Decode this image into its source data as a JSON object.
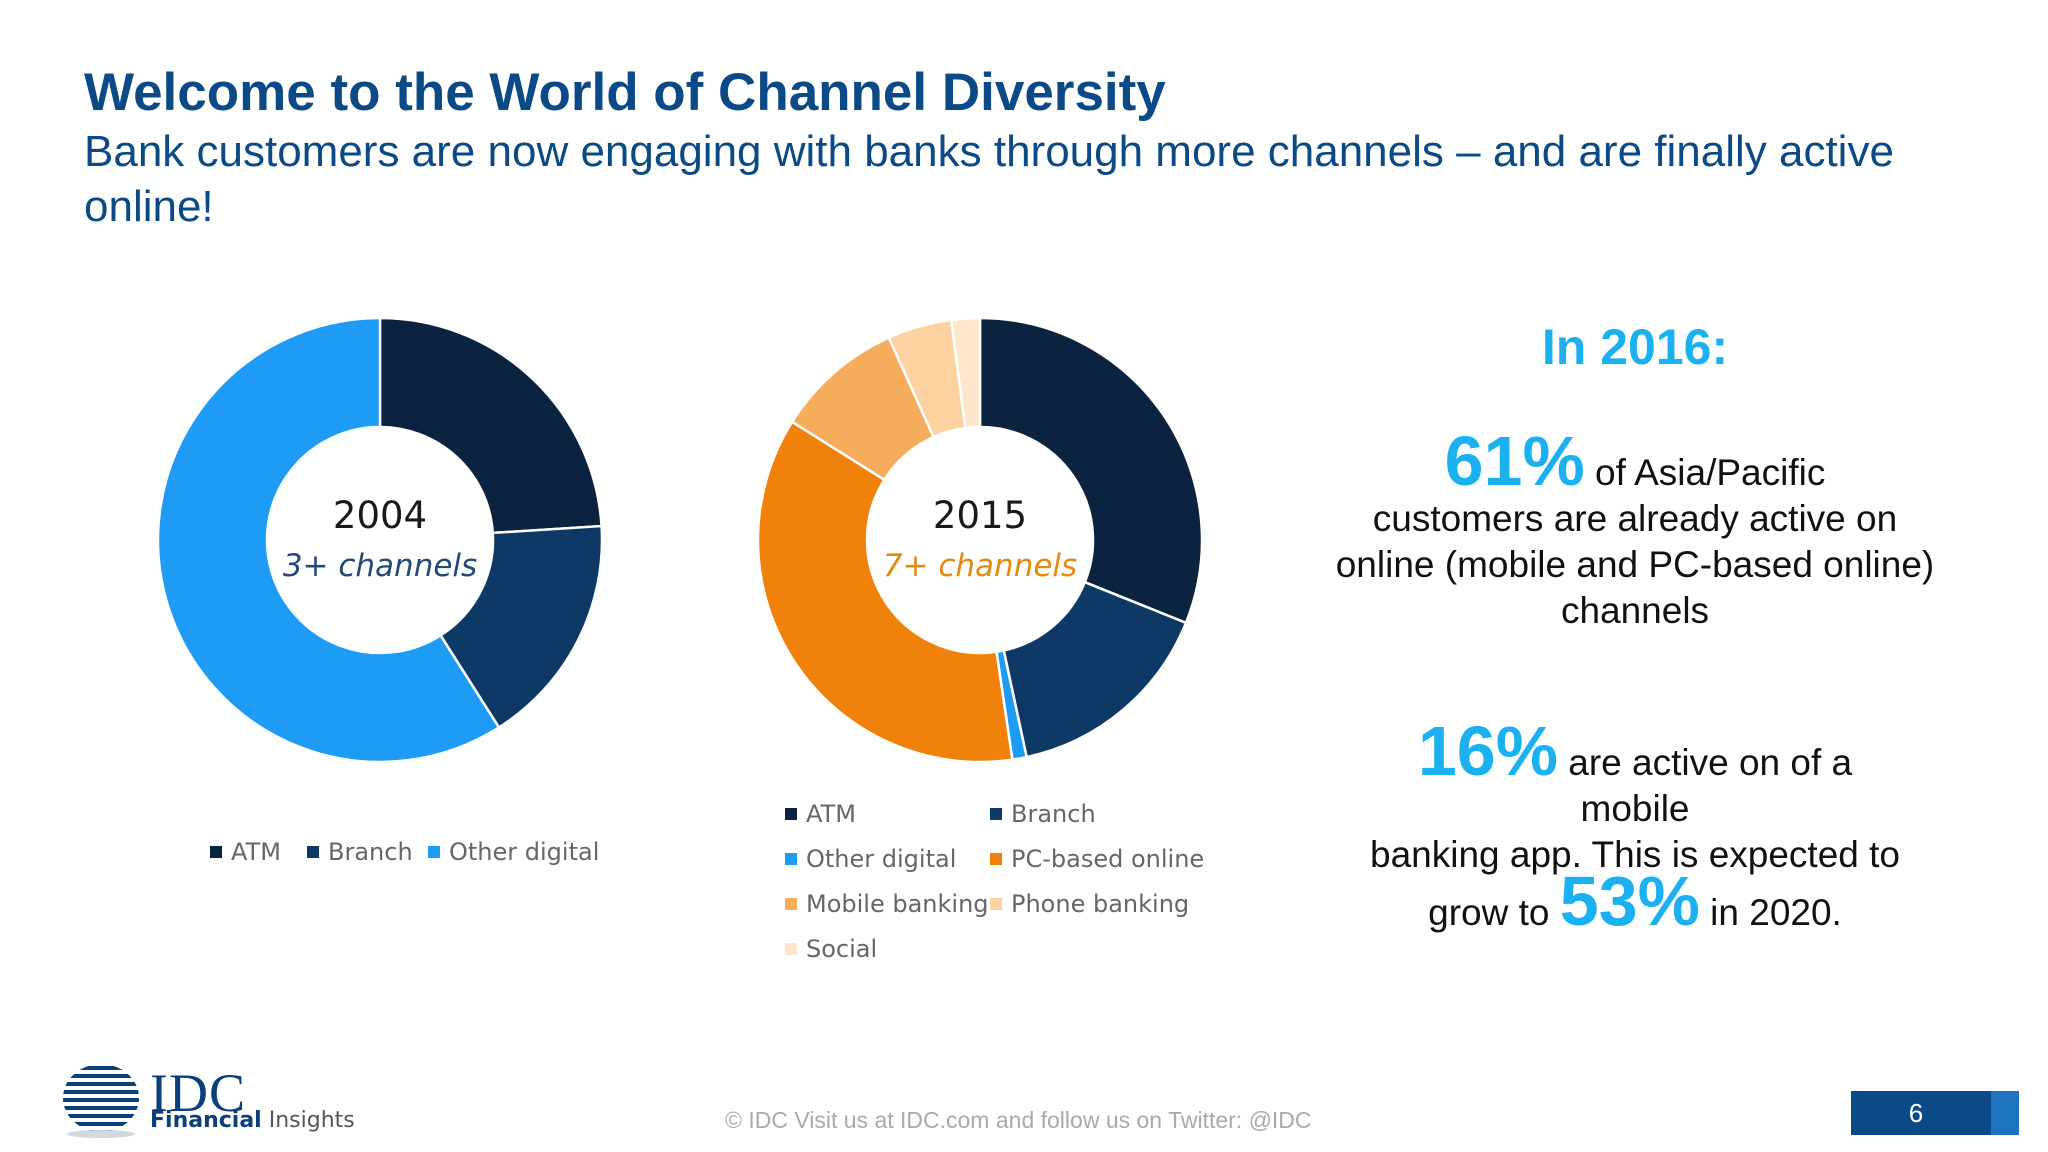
{
  "header": {
    "title": "Welcome to the World of Channel Diversity",
    "subtitle": "Bank customers are now engaging with banks through more channels – and are finally active online!"
  },
  "colors": {
    "ATM": "#0c2340",
    "Branch": "#0e3966",
    "Other digital": "#1e9cf5",
    "PC-based online": "#f0820b",
    "Mobile banking": "#f6ad5b",
    "Phone banking": "#fbd2a0",
    "Social": "#fde6cc"
  },
  "chart_data": [
    {
      "type": "pie",
      "center_label": "2004",
      "center_sublabel": "3+ channels",
      "sublabel_color": "#244a78",
      "categories": [
        "ATM",
        "Branch",
        "Other digital"
      ],
      "values": [
        24,
        17,
        59
      ]
    },
    {
      "type": "pie",
      "center_label": "2015",
      "center_sublabel": "7+ channels",
      "sublabel_color": "#e8890f",
      "categories": [
        "ATM",
        "Branch",
        "Other digital",
        "PC-based online",
        "Mobile banking",
        "Phone banking",
        "Social"
      ],
      "values": [
        30,
        15,
        1,
        35,
        9,
        4.5,
        2
      ]
    }
  ],
  "callout": {
    "heading": "In 2016:",
    "stat1": "61%",
    "stat1_after": "of Asia/Pacific",
    "stat1_rest": "customers are already active on online (mobile and PC-based online) channels",
    "stat2": "16%",
    "stat2_after": "are active on of a",
    "stat2_line2": "mobile",
    "stat2_line3": "banking app. This is expected to",
    "stat3_before": "grow to",
    "stat3": "53%",
    "stat3_after": "in 2020."
  },
  "footer": {
    "text": "© IDC   Visit us at IDC.com and follow us on Twitter: @IDC",
    "page_number": "6"
  },
  "logo": {
    "name": "IDC",
    "sub_bold": "Financial",
    "sub_light": "Insights"
  }
}
